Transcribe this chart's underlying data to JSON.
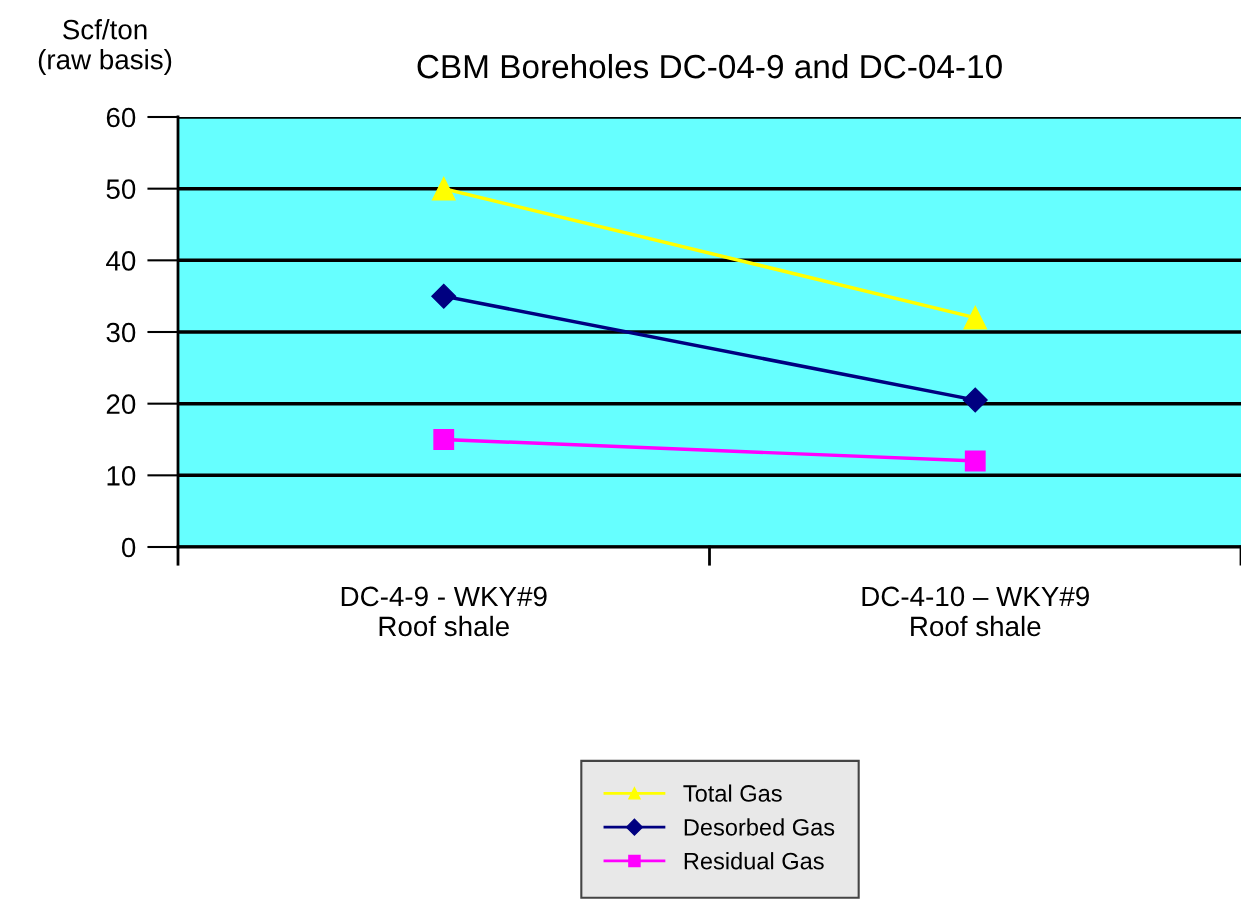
{
  "chart_data": {
    "type": "line",
    "title": "CBM Boreholes DC-04-9 and DC-04-10",
    "ylabel": "Scf/ton\n(raw basis)",
    "categories": [
      "DC-4-9 - WKY#9\nRoof shale",
      "DC-4-10 – WKY#9\nRoof shale"
    ],
    "series": [
      {
        "name": "Total Gas",
        "color": "#ffff00",
        "values": [
          50,
          32
        ],
        "marker": "triangle"
      },
      {
        "name": "Desorbed Gas",
        "color": "#000080",
        "values": [
          35,
          20.5
        ],
        "marker": "diamond"
      },
      {
        "name": "Residual Gas",
        "color": "#ff00ff",
        "values": [
          15,
          12
        ],
        "marker": "square"
      }
    ],
    "ylim": [
      0,
      60
    ],
    "yticks": [
      0,
      10,
      20,
      30,
      40,
      50,
      60
    ],
    "grid": "y",
    "legend": "bottom"
  }
}
